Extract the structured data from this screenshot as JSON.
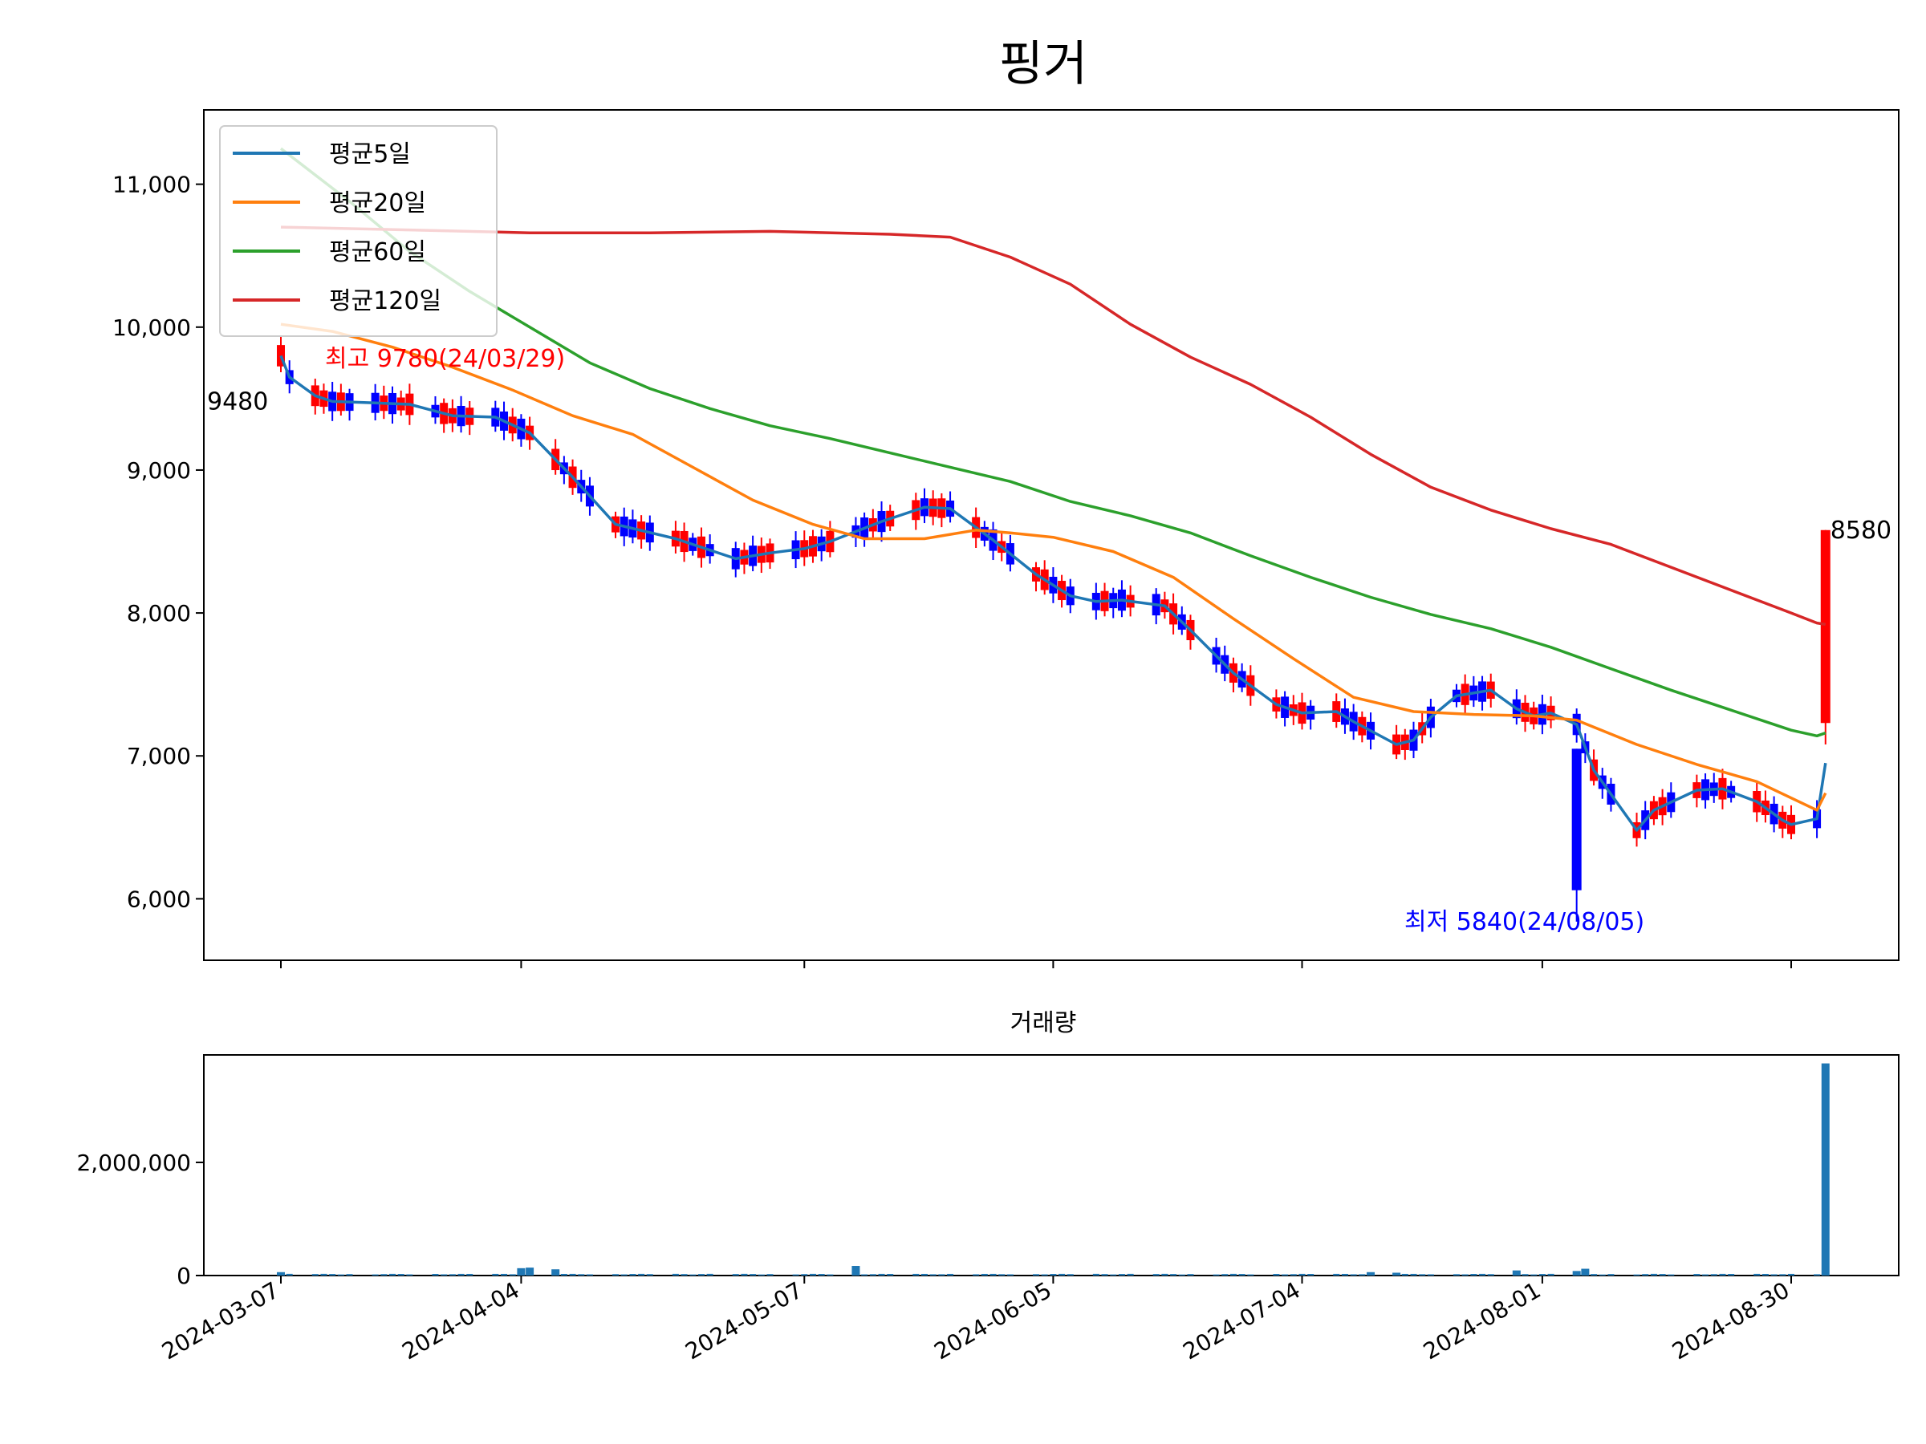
{
  "chart_data": [
    {
      "type": "candlestick",
      "title": "핑거",
      "ylim": [
        5570,
        11520
      ],
      "y_ticks": [
        "6,000",
        "7,000",
        "8,000",
        "9,000",
        "10,000",
        "11,000"
      ],
      "y_tick_values": [
        6000,
        7000,
        8000,
        9000,
        10000,
        11000
      ],
      "x_ticks": [
        "2024-03-07",
        "2024-04-04",
        "2024-05-07",
        "2024-06-05",
        "2024-07-04",
        "2024-08-01",
        "2024-08-30"
      ],
      "up_color": "#ff0000",
      "down_color": "#0000ff",
      "annotations": {
        "high_text": "최고 9780(24/03/29)",
        "high_value": 9780,
        "low_text": "최저 5840(24/08/05)",
        "low_value": 5840,
        "first_close_text": "9480",
        "first_close_value": 9480,
        "last_close_text": "8580",
        "last_close_value": 8580
      },
      "series": [
        {
          "name": "평균5일",
          "color": "#1f77b4",
          "points": [
            [
              "2024-03-07",
              9800
            ],
            [
              "2024-03-08",
              9650
            ],
            [
              "2024-03-11",
              9520
            ],
            [
              "2024-03-13",
              9480
            ],
            [
              "2024-03-18",
              9470
            ],
            [
              "2024-03-22",
              9460
            ],
            [
              "2024-03-27",
              9380
            ],
            [
              "2024-04-01",
              9370
            ],
            [
              "2024-04-05",
              9260
            ],
            [
              "2024-04-10",
              8950
            ],
            [
              "2024-04-15",
              8620
            ],
            [
              "2024-04-22",
              8520
            ],
            [
              "2024-04-29",
              8380
            ],
            [
              "2024-05-03",
              8420
            ],
            [
              "2024-05-07",
              8450
            ],
            [
              "2024-05-10",
              8500
            ],
            [
              "2024-05-16",
              8640
            ],
            [
              "2024-05-21",
              8740
            ],
            [
              "2024-05-24",
              8730
            ],
            [
              "2024-05-29",
              8510
            ],
            [
              "2024-06-03",
              8270
            ],
            [
              "2024-06-07",
              8120
            ],
            [
              "2024-06-10",
              8080
            ],
            [
              "2024-06-13",
              8090
            ],
            [
              "2024-06-18",
              8050
            ],
            [
              "2024-06-21",
              7880
            ],
            [
              "2024-06-26",
              7580
            ],
            [
              "2024-07-01",
              7360
            ],
            [
              "2024-07-04",
              7300
            ],
            [
              "2024-07-08",
              7310
            ],
            [
              "2024-07-10",
              7240
            ],
            [
              "2024-07-15",
              7080
            ],
            [
              "2024-07-17",
              7110
            ],
            [
              "2024-07-19",
              7270
            ],
            [
              "2024-07-22",
              7420
            ],
            [
              "2024-07-26",
              7460
            ],
            [
              "2024-07-29",
              7330
            ],
            [
              "2024-07-31",
              7280
            ],
            [
              "2024-08-02",
              7300
            ],
            [
              "2024-08-05",
              7220
            ],
            [
              "2024-08-07",
              6900
            ],
            [
              "2024-08-12",
              6480
            ],
            [
              "2024-08-14",
              6620
            ],
            [
              "2024-08-19",
              6760
            ],
            [
              "2024-08-22",
              6770
            ],
            [
              "2024-08-26",
              6680
            ],
            [
              "2024-08-29",
              6550
            ],
            [
              "2024-08-30",
              6520
            ],
            [
              "2024-09-02",
              6560
            ],
            [
              "2024-09-03",
              6950
            ]
          ]
        },
        {
          "name": "평균20일",
          "color": "#ff7f0e",
          "points": [
            [
              "2024-03-07",
              10020
            ],
            [
              "2024-03-13",
              9970
            ],
            [
              "2024-03-20",
              9860
            ],
            [
              "2024-03-27",
              9720
            ],
            [
              "2024-04-03",
              9560
            ],
            [
              "2024-04-10",
              9380
            ],
            [
              "2024-04-17",
              9250
            ],
            [
              "2024-04-24",
              9020
            ],
            [
              "2024-05-01",
              8790
            ],
            [
              "2024-05-08",
              8620
            ],
            [
              "2024-05-14",
              8520
            ],
            [
              "2024-05-21",
              8520
            ],
            [
              "2024-05-27",
              8580
            ],
            [
              "2024-05-31",
              8560
            ],
            [
              "2024-06-05",
              8530
            ],
            [
              "2024-06-12",
              8430
            ],
            [
              "2024-06-19",
              8250
            ],
            [
              "2024-06-26",
              7960
            ],
            [
              "2024-07-03",
              7680
            ],
            [
              "2024-07-10",
              7410
            ],
            [
              "2024-07-17",
              7310
            ],
            [
              "2024-07-24",
              7290
            ],
            [
              "2024-07-31",
              7280
            ],
            [
              "2024-08-05",
              7250
            ],
            [
              "2024-08-12",
              7080
            ],
            [
              "2024-08-19",
              6940
            ],
            [
              "2024-08-26",
              6820
            ],
            [
              "2024-09-02",
              6620
            ],
            [
              "2024-09-03",
              6740
            ]
          ]
        },
        {
          "name": "평균60일",
          "color": "#2ca02c",
          "points": [
            [
              "2024-03-07",
              11250
            ],
            [
              "2024-03-15",
              10880
            ],
            [
              "2024-03-22",
              10530
            ],
            [
              "2024-03-29",
              10250
            ],
            [
              "2024-04-05",
              10000
            ],
            [
              "2024-04-12",
              9750
            ],
            [
              "2024-04-19",
              9570
            ],
            [
              "2024-04-26",
              9430
            ],
            [
              "2024-05-03",
              9310
            ],
            [
              "2024-05-10",
              9220
            ],
            [
              "2024-05-17",
              9120
            ],
            [
              "2024-05-24",
              9020
            ],
            [
              "2024-05-31",
              8920
            ],
            [
              "2024-06-07",
              8780
            ],
            [
              "2024-06-14",
              8680
            ],
            [
              "2024-06-21",
              8560
            ],
            [
              "2024-06-28",
              8400
            ],
            [
              "2024-07-05",
              8250
            ],
            [
              "2024-07-12",
              8110
            ],
            [
              "2024-07-19",
              7990
            ],
            [
              "2024-07-26",
              7890
            ],
            [
              "2024-08-02",
              7760
            ],
            [
              "2024-08-09",
              7610
            ],
            [
              "2024-08-16",
              7460
            ],
            [
              "2024-08-23",
              7320
            ],
            [
              "2024-08-30",
              7180
            ],
            [
              "2024-09-02",
              7140
            ],
            [
              "2024-09-03",
              7160
            ]
          ]
        },
        {
          "name": "평균120일",
          "color": "#d62728",
          "points": [
            [
              "2024-03-07",
              10700
            ],
            [
              "2024-03-22",
              10680
            ],
            [
              "2024-04-05",
              10660
            ],
            [
              "2024-04-19",
              10660
            ],
            [
              "2024-05-03",
              10670
            ],
            [
              "2024-05-17",
              10650
            ],
            [
              "2024-05-24",
              10630
            ],
            [
              "2024-05-31",
              10490
            ],
            [
              "2024-06-07",
              10300
            ],
            [
              "2024-06-14",
              10020
            ],
            [
              "2024-06-21",
              9790
            ],
            [
              "2024-06-28",
              9600
            ],
            [
              "2024-07-05",
              9370
            ],
            [
              "2024-07-12",
              9110
            ],
            [
              "2024-07-19",
              8880
            ],
            [
              "2024-07-26",
              8720
            ],
            [
              "2024-08-02",
              8590
            ],
            [
              "2024-08-09",
              8480
            ],
            [
              "2024-08-16",
              8320
            ],
            [
              "2024-08-23",
              8160
            ],
            [
              "2024-08-30",
              8000
            ],
            [
              "2024-09-02",
              7930
            ],
            [
              "2024-09-03",
              7920
            ]
          ]
        }
      ]
    },
    {
      "type": "bar",
      "title": "거래량",
      "ylim": [
        0,
        3900000
      ],
      "y_ticks": [
        "0",
        "2,000,000"
      ],
      "y_tick_values": [
        0,
        2000000
      ],
      "x_ticks": [
        "2024-03-07",
        "2024-04-04",
        "2024-05-07",
        "2024-06-05",
        "2024-07-04",
        "2024-08-01",
        "2024-08-30"
      ],
      "color": "#1f77b4",
      "categories": [
        "2024-03-07",
        "2024-04-04",
        "2024-04-05",
        "2024-04-08",
        "2024-05-13",
        "2024-07-12",
        "2024-07-15",
        "2024-07-29",
        "2024-08-05",
        "2024-08-06",
        "2024-09-03"
      ],
      "values": [
        60000,
        130000,
        140000,
        110000,
        170000,
        60000,
        50000,
        90000,
        80000,
        120000,
        3750000
      ]
    }
  ]
}
